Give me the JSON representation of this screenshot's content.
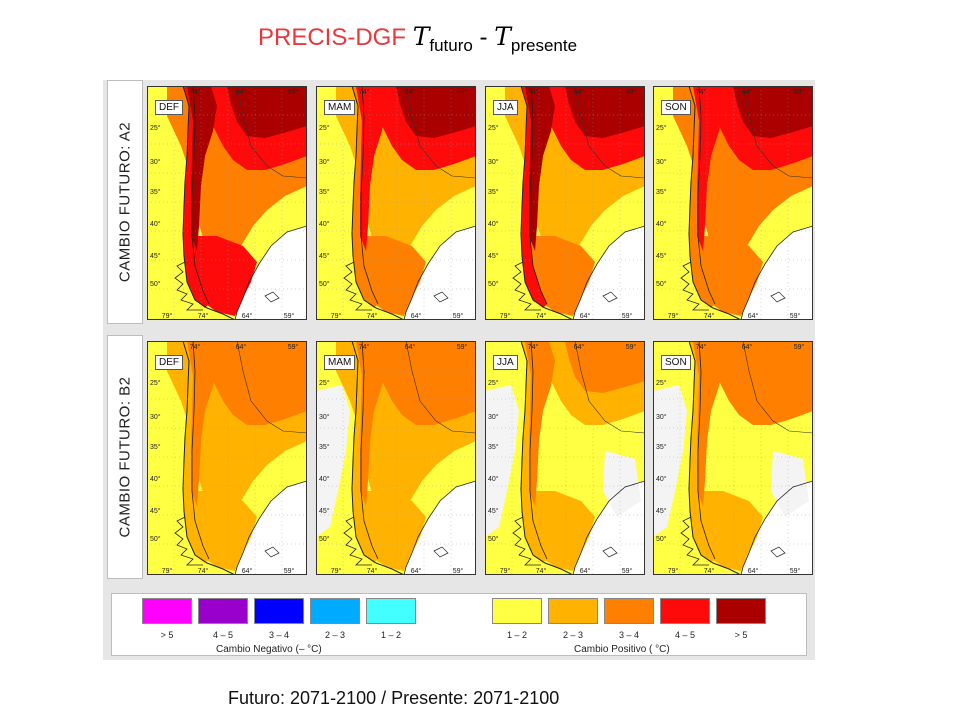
{
  "title": {
    "prefix": "PRECIS-DGF",
    "symbol1": "T",
    "sub1": "futuro",
    "dash": "-",
    "symbol2": "T",
    "sub2": "presente"
  },
  "footer": "Futuro: 2071-2100 / Presente: 2071-2100",
  "chart_data": {
    "type": "heatmap",
    "rows": [
      {
        "label": "CAMBIO FUTURO: A2"
      },
      {
        "label": "CAMBIO FUTURO: B2"
      }
    ],
    "seasons": [
      "DEF",
      "MAM",
      "JJA",
      "SON"
    ],
    "lat_ticks": [
      "25°",
      "30°",
      "35°",
      "40°",
      "45°",
      "50°"
    ],
    "lon_ticks_top": [
      "74°",
      "64°",
      "59°"
    ],
    "lon_ticks_bottom": [
      "79°",
      "74°",
      "64°",
      "59°"
    ],
    "legend": {
      "negative_title": "Cambio Negativo (–    °C)",
      "positive_title": "Cambio Positivo (     °C)",
      "negative": [
        {
          "label": "> 5",
          "color": "#ff00ff"
        },
        {
          "label": "4 – 5",
          "color": "#9900cc"
        },
        {
          "label": "3 – 4",
          "color": "#0000ff"
        },
        {
          "label": "2 – 3",
          "color": "#00aaff"
        },
        {
          "label": "1 – 2",
          "color": "#44ffff"
        }
      ],
      "positive": [
        {
          "label": "1 – 2",
          "color": "#ffff44"
        },
        {
          "label": "2 – 3",
          "color": "#ffb300"
        },
        {
          "label": "3 – 4",
          "color": "#ff7f00"
        },
        {
          "label": "4 – 5",
          "color": "#ff0a0a"
        },
        {
          "label": "> 5",
          "color": "#aa0000"
        }
      ]
    }
  }
}
